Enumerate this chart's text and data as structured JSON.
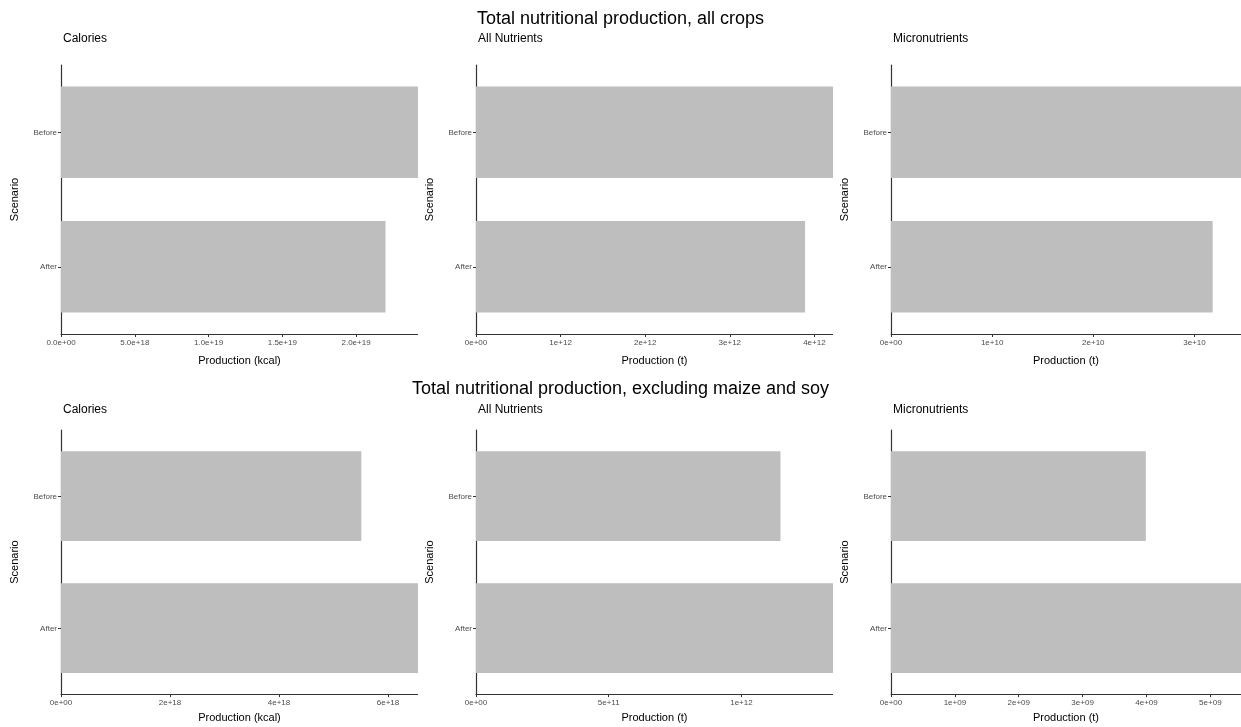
{
  "chart_data": [
    {
      "type": "other",
      "title": "Total nutritional production, all crops"
    },
    {
      "type": "bar",
      "orientation": "horizontal",
      "title": "Calories",
      "xlabel": "Production (kcal)",
      "ylabel": "Scenario",
      "categories": [
        "Before",
        "After"
      ],
      "values": [
        2.42e+19,
        2.2e+19
      ],
      "color": "#bebebe",
      "xlim": [
        0,
        2.42e+19
      ],
      "xticks": [
        {
          "value": 0,
          "label": "0.0e+00"
        },
        {
          "value": 5e+18,
          "label": "5.0e+18"
        },
        {
          "value": 1e+19,
          "label": "1.0e+19"
        },
        {
          "value": 1.5e+19,
          "label": "1.5e+19"
        },
        {
          "value": 2e+19,
          "label": "2.0e+19"
        }
      ],
      "grid": false
    },
    {
      "type": "bar",
      "orientation": "horizontal",
      "title": "All Nutrients",
      "xlabel": "Production (t)",
      "ylabel": "Scenario",
      "categories": [
        "Before",
        "After"
      ],
      "values": [
        4220000000000.0,
        3890000000000.0
      ],
      "color": "#bebebe",
      "xlim": [
        0,
        4220000000000.0
      ],
      "xticks": [
        {
          "value": 0,
          "label": "0e+00"
        },
        {
          "value": 1000000000000.0,
          "label": "1e+12"
        },
        {
          "value": 2000000000000.0,
          "label": "2e+12"
        },
        {
          "value": 3000000000000.0,
          "label": "3e+12"
        },
        {
          "value": 4000000000000.0,
          "label": "4e+12"
        }
      ],
      "grid": false
    },
    {
      "type": "bar",
      "orientation": "horizontal",
      "title": "Micronutrients",
      "xlabel": "Production (t)",
      "ylabel": "Scenario",
      "categories": [
        "Before",
        "After"
      ],
      "values": [
        34600000000.0,
        31800000000.0
      ],
      "color": "#bebebe",
      "xlim": [
        0,
        34600000000.0
      ],
      "xticks": [
        {
          "value": 0,
          "label": "0e+00"
        },
        {
          "value": 10000000000.0,
          "label": "1e+10"
        },
        {
          "value": 20000000000.0,
          "label": "2e+10"
        },
        {
          "value": 30000000000.0,
          "label": "3e+10"
        }
      ],
      "grid": false
    },
    {
      "type": "other",
      "title": "Total nutritional production, excluding maize and soy"
    },
    {
      "type": "bar",
      "orientation": "horizontal",
      "title": "Calories",
      "xlabel": "Production (kcal)",
      "ylabel": "Scenario",
      "categories": [
        "Before",
        "After"
      ],
      "values": [
        5.51e+18,
        6.55e+18
      ],
      "color": "#bebebe",
      "xlim": [
        0,
        6.55e+18
      ],
      "xticks": [
        {
          "value": 0,
          "label": "0e+00"
        },
        {
          "value": 2e+18,
          "label": "2e+18"
        },
        {
          "value": 4e+18,
          "label": "4e+18"
        },
        {
          "value": 6e+18,
          "label": "6e+18"
        }
      ],
      "grid": false
    },
    {
      "type": "bar",
      "orientation": "horizontal",
      "title": "All Nutrients",
      "xlabel": "Production (t)",
      "ylabel": "Scenario",
      "categories": [
        "Before",
        "After"
      ],
      "values": [
        1147000000000.0,
        1345000000000.0
      ],
      "color": "#bebebe",
      "xlim": [
        0,
        1345000000000.0
      ],
      "xticks": [
        {
          "value": 0,
          "label": "0e+00"
        },
        {
          "value": 500000000000.0,
          "label": "5e+11"
        },
        {
          "value": 1000000000000.0,
          "label": "1e+12"
        }
      ],
      "grid": false
    },
    {
      "type": "bar",
      "orientation": "horizontal",
      "title": "Micronutrients",
      "xlabel": "Production (t)",
      "ylabel": "Scenario",
      "categories": [
        "Before",
        "After"
      ],
      "values": [
        3990000000.0,
        5480000000.0
      ],
      "color": "#bebebe",
      "xlim": [
        0,
        5480000000.0
      ],
      "xticks": [
        {
          "value": 0,
          "label": "0e+00"
        },
        {
          "value": 1000000000.0,
          "label": "1e+09"
        },
        {
          "value": 2000000000.0,
          "label": "2e+09"
        },
        {
          "value": 3000000000.0,
          "label": "3e+09"
        },
        {
          "value": 4000000000.0,
          "label": "4e+09"
        },
        {
          "value": 5000000000.0,
          "label": "5e+09"
        }
      ],
      "grid": false
    }
  ]
}
